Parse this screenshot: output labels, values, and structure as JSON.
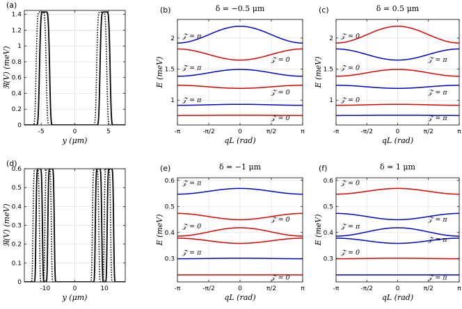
{
  "chart_data": [
    {
      "id": "a",
      "type": "line",
      "panel_label": "(a)",
      "title": "",
      "xlabel": "y (μm)",
      "ylabel": "ℜ(V) (meV)",
      "xlim": [
        -7.5,
        7.5
      ],
      "ylim": [
        0,
        1.45
      ],
      "xticks": [
        -5,
        0,
        5
      ],
      "xtick_labels": [
        "-5",
        "0",
        "5"
      ],
      "yticks": [
        0,
        0.2,
        0.4,
        0.6,
        0.8,
        1.0,
        1.2,
        1.4
      ],
      "ytick_labels": [
        "0",
        "0.2",
        "0.4",
        "0.6",
        "0.8",
        "1",
        "1.2",
        "1.4"
      ],
      "grid": true,
      "series": [
        {
          "style": "solid",
          "color": "#000000",
          "peaks": [
            -4.5,
            4.5
          ],
          "height": 1.43,
          "width": 0.55,
          "flat": 0.25
        },
        {
          "style": "dotted",
          "color": "#000000",
          "peaks": [
            -5.0,
            4.0
          ],
          "height": 1.43,
          "width": 0.55,
          "flat": 0.25
        }
      ]
    },
    {
      "id": "b",
      "type": "line",
      "panel_label": "(b)",
      "title": "δ = −0.5 μm",
      "xlabel": "qL (rad)",
      "ylabel": "E (meV)",
      "xlim": [
        -3.1416,
        3.1416
      ],
      "ylim": [
        0.6,
        2.3
      ],
      "xticks": [
        -3.1416,
        -1.5708,
        0,
        1.5708,
        3.1416
      ],
      "xtick_labels": [
        "-π",
        "-π/2",
        "0",
        "π/2",
        "π"
      ],
      "yticks": [
        1.0,
        1.5,
        2.0
      ],
      "ytick_labels": [
        "1",
        "1.5",
        "2"
      ],
      "grid": true,
      "bands": [
        {
          "color": "#0000cc",
          "mean": 2.055,
          "amp": 0.135
        },
        {
          "color": "#dd0000",
          "mean": 1.735,
          "amp": -0.09
        },
        {
          "color": "#0000cc",
          "mean": 1.44,
          "amp": 0.055
        },
        {
          "color": "#dd0000",
          "mean": 1.215,
          "amp": -0.025
        },
        {
          "color": "#0000cc",
          "mean": 0.925,
          "amp": 0.008
        },
        {
          "color": "#dd0000",
          "mean": 0.755,
          "amp": 0.002
        }
      ],
      "annotations": [
        {
          "text": "𝒵 = π",
          "x": -2.9,
          "y": 2.0
        },
        {
          "text": "𝒵 = 0",
          "x": 1.55,
          "y": 1.62
        },
        {
          "text": "𝒵 = π",
          "x": -2.9,
          "y": 1.49
        },
        {
          "text": "𝒵 = 0",
          "x": 1.55,
          "y": 1.09
        },
        {
          "text": "𝒵 = π",
          "x": -2.9,
          "y": 0.97
        },
        {
          "text": "𝒵 = 0",
          "x": 1.55,
          "y": 0.68
        }
      ]
    },
    {
      "id": "c",
      "type": "line",
      "panel_label": "(c)",
      "title": "δ = 0.5 μm",
      "xlabel": "qL (rad)",
      "ylabel": "E (meV)",
      "xlim": [
        -3.1416,
        3.1416
      ],
      "ylim": [
        0.6,
        2.3
      ],
      "xticks": [
        -3.1416,
        -1.5708,
        0,
        1.5708,
        3.1416
      ],
      "xtick_labels": [
        "-π",
        "-π/2",
        "0",
        "π/2",
        "π"
      ],
      "yticks": [
        1.0,
        1.5,
        2.0
      ],
      "ytick_labels": [
        "1",
        "1.5",
        "2"
      ],
      "grid": true,
      "bands": [
        {
          "color": "#dd0000",
          "mean": 2.055,
          "amp": 0.135
        },
        {
          "color": "#0000cc",
          "mean": 1.735,
          "amp": -0.09
        },
        {
          "color": "#dd0000",
          "mean": 1.44,
          "amp": 0.055
        },
        {
          "color": "#0000cc",
          "mean": 1.215,
          "amp": -0.025
        },
        {
          "color": "#dd0000",
          "mean": 0.925,
          "amp": 0.008
        },
        {
          "color": "#0000cc",
          "mean": 0.755,
          "amp": 0.002
        }
      ],
      "annotations": [
        {
          "text": "𝒵 = 0",
          "x": -2.9,
          "y": 2.0
        },
        {
          "text": "𝒵 = π",
          "x": 1.55,
          "y": 1.62
        },
        {
          "text": "𝒵 = 0",
          "x": -2.9,
          "y": 1.49
        },
        {
          "text": "𝒵 = π",
          "x": 1.55,
          "y": 1.09
        },
        {
          "text": "𝒵 = 0",
          "x": -2.9,
          "y": 0.97
        },
        {
          "text": "𝒵 = π",
          "x": 1.55,
          "y": 0.68
        }
      ]
    },
    {
      "id": "d",
      "type": "line",
      "panel_label": "(d)",
      "title": "",
      "xlabel": "y (μm)",
      "ylabel": "ℜ(V) (meV)",
      "xlim": [
        -17,
        17
      ],
      "ylim": [
        0,
        0.6
      ],
      "xticks": [
        -10,
        0,
        10
      ],
      "xtick_labels": [
        "-10",
        "0",
        "10"
      ],
      "yticks": [
        0,
        0.1,
        0.2,
        0.3,
        0.4,
        0.5,
        0.6
      ],
      "ytick_labels": [
        "0",
        "0.1",
        "0.2",
        "0.3",
        "0.4",
        "0.5",
        "0.6"
      ],
      "grid": true,
      "series": [
        {
          "style": "solid",
          "color": "#000000",
          "peaks": [
            -12,
            -8,
            8,
            12
          ],
          "height": 0.6,
          "width": 0.75,
          "flat": 0.4
        },
        {
          "style": "dotted",
          "color": "#000000",
          "peaks": [
            -13,
            -9,
            7,
            11
          ],
          "height": 0.6,
          "width": 0.75,
          "flat": 0.4
        }
      ]
    },
    {
      "id": "e",
      "type": "line",
      "panel_label": "(e)",
      "title": "δ = −1 μm",
      "xlabel": "qL (rad)",
      "ylabel": "E (meV)",
      "xlim": [
        -3.1416,
        3.1416
      ],
      "ylim": [
        0.21,
        0.61
      ],
      "xticks": [
        -3.1416,
        -1.5708,
        0,
        1.5708,
        3.1416
      ],
      "xtick_labels": [
        "-π",
        "-π/2",
        "0",
        "π/2",
        "π"
      ],
      "yticks": [
        0.3,
        0.4,
        0.5,
        0.6
      ],
      "ytick_labels": [
        "0.3",
        "0.4",
        "0.5",
        "0.6"
      ],
      "grid": true,
      "bands": [
        {
          "color": "#0000cc",
          "mean": 0.558,
          "amp": 0.011
        },
        {
          "color": "#dd0000",
          "mean": 0.461,
          "amp": -0.012
        },
        {
          "color": "#dd0000",
          "mean": 0.402,
          "amp": 0.016
        },
        {
          "color": "#dd0000",
          "mean": 0.368,
          "amp": -0.01
        },
        {
          "color": "#0000cc",
          "mean": 0.3,
          "amp": 0.001
        },
        {
          "color": "#dd0000",
          "mean": 0.237,
          "amp": 0.0
        }
      ],
      "annotations": [
        {
          "text": "𝒵 = π",
          "x": -2.9,
          "y": 0.582
        },
        {
          "text": "𝒵 = 0",
          "x": 1.55,
          "y": 0.442
        },
        {
          "text": "𝒵 = 0",
          "x": -2.9,
          "y": 0.415
        },
        {
          "text": "𝒵 = π",
          "x": -2.9,
          "y": 0.316
        },
        {
          "text": "𝒵 = 0",
          "x": 1.55,
          "y": 0.219
        }
      ]
    },
    {
      "id": "f",
      "type": "line",
      "panel_label": "(f)",
      "title": "δ = 1 μm",
      "xlabel": "qL (rad)",
      "ylabel": "E (meV)",
      "xlim": [
        -3.1416,
        3.1416
      ],
      "ylim": [
        0.21,
        0.61
      ],
      "xticks": [
        -3.1416,
        -1.5708,
        0,
        1.5708,
        3.1416
      ],
      "xtick_labels": [
        "-π",
        "-π/2",
        "0",
        "π/2",
        "π"
      ],
      "yticks": [
        0.3,
        0.4,
        0.5,
        0.6
      ],
      "ytick_labels": [
        "0.3",
        "0.4",
        "0.5",
        "0.6"
      ],
      "grid": true,
      "bands": [
        {
          "color": "#dd0000",
          "mean": 0.558,
          "amp": 0.011
        },
        {
          "color": "#0000cc",
          "mean": 0.461,
          "amp": -0.012
        },
        {
          "color": "#0000cc",
          "mean": 0.402,
          "amp": 0.016
        },
        {
          "color": "#0000cc",
          "mean": 0.368,
          "amp": -0.01
        },
        {
          "color": "#dd0000",
          "mean": 0.3,
          "amp": 0.001
        },
        {
          "color": "#0000cc",
          "mean": 0.237,
          "amp": 0.0
        }
      ],
      "annotations": [
        {
          "text": "𝒵 = 0",
          "x": -2.9,
          "y": 0.582
        },
        {
          "text": "𝒵 = π",
          "x": 1.55,
          "y": 0.442
        },
        {
          "text": "𝒵 = π",
          "x": -2.9,
          "y": 0.415
        },
        {
          "text": "𝒵 = π",
          "x": 1.55,
          "y": 0.365
        },
        {
          "text": "𝒵 = 0",
          "x": -2.9,
          "y": 0.316
        },
        {
          "text": "𝒵 = π",
          "x": 1.55,
          "y": 0.219
        }
      ]
    }
  ]
}
